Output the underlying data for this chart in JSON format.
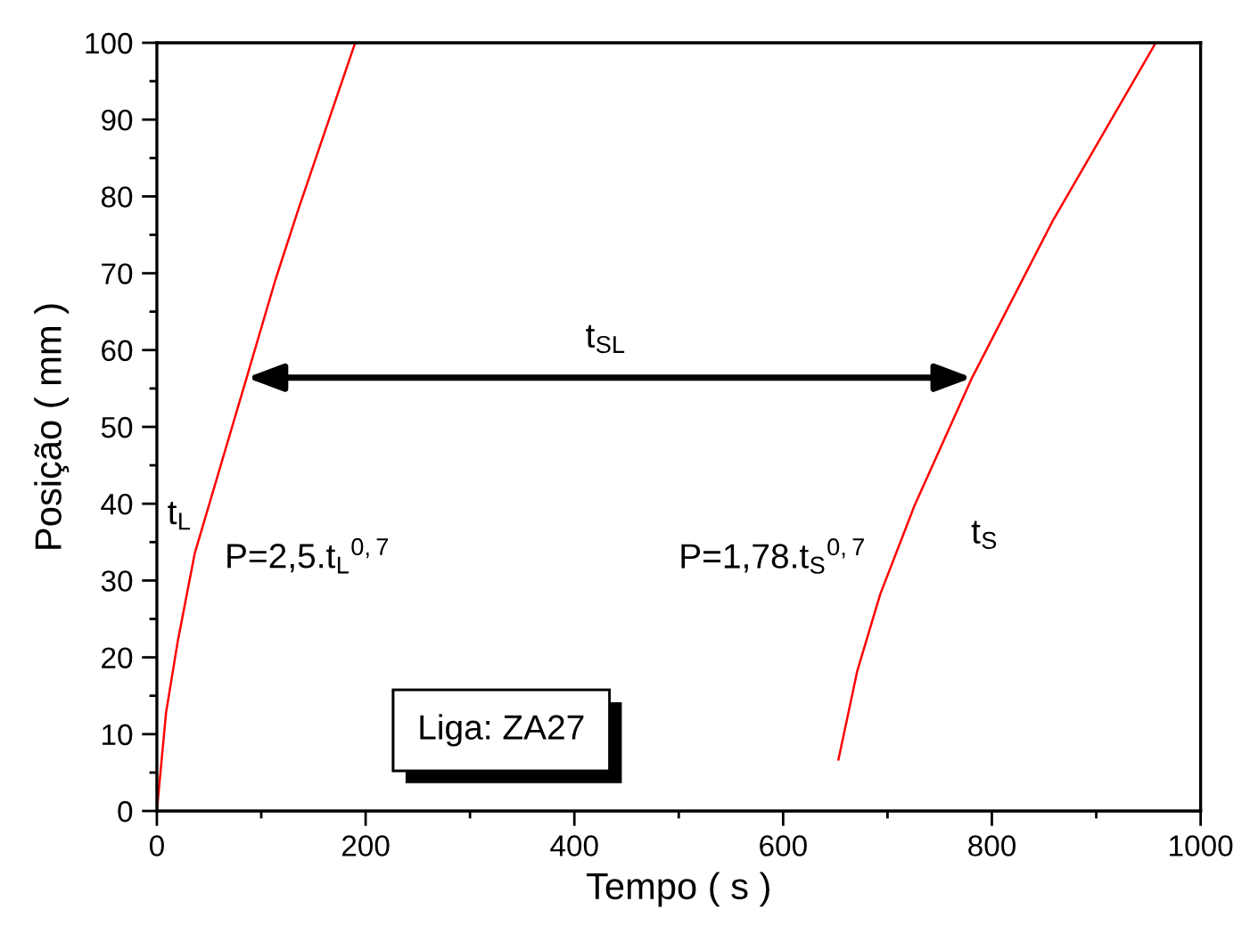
{
  "chart_data": {
    "type": "line",
    "xlabel": "Tempo ( s )",
    "ylabel": "Posição ( mm )",
    "series": [
      {
        "color": "#ff0000",
        "x": [
          0,
          8.8,
          19.9,
          36.4,
          86,
          113.7,
          136,
          190
        ],
        "values": [
          0,
          12.8,
          22,
          33.6,
          56.4,
          69.2,
          78.5,
          100
        ]
      },
      {
        "color": "#ff0000",
        "x": [
          653,
          671,
          693,
          726,
          781,
          859,
          957
        ],
        "values": [
          6.7,
          18.2,
          28.2,
          39.8,
          56.4,
          77,
          100
        ]
      }
    ],
    "xlim": [
      0,
      1000
    ],
    "ylim": [
      0,
      100
    ],
    "xticks": [
      0,
      {
        "value": 100,
        "label": null
      },
      200,
      {
        "value": 300,
        "label": null
      },
      400,
      {
        "value": 500,
        "label": null
      },
      600,
      {
        "value": 700,
        "label": null
      },
      800,
      {
        "value": 900,
        "label": null
      },
      1000
    ],
    "yticks": [
      0,
      {
        "value": 5,
        "label": null
      },
      10,
      {
        "value": 15,
        "label": null
      },
      20,
      {
        "value": 25,
        "label": null
      },
      30,
      {
        "value": 35,
        "label": null
      },
      40,
      {
        "value": 45,
        "label": null
      },
      50,
      {
        "value": 55,
        "label": null
      },
      60,
      {
        "value": 65,
        "label": null
      },
      70,
      {
        "value": 75,
        "label": null
      },
      80,
      {
        "value": 85,
        "label": null
      },
      90,
      {
        "value": 95,
        "label": null
      },
      100
    ],
    "grid": false,
    "legend": false,
    "marker": "none",
    "line_style": "solid",
    "annotations": [
      "t$_{SL}$",
      "t$_{L}$",
      "P=2,5.t$_{L}$$^{0,7}$",
      "P=1,78.t$_{S}$$^{0,7}$",
      "t$_{S}$",
      "Liga: ZA27"
    ]
  }
}
